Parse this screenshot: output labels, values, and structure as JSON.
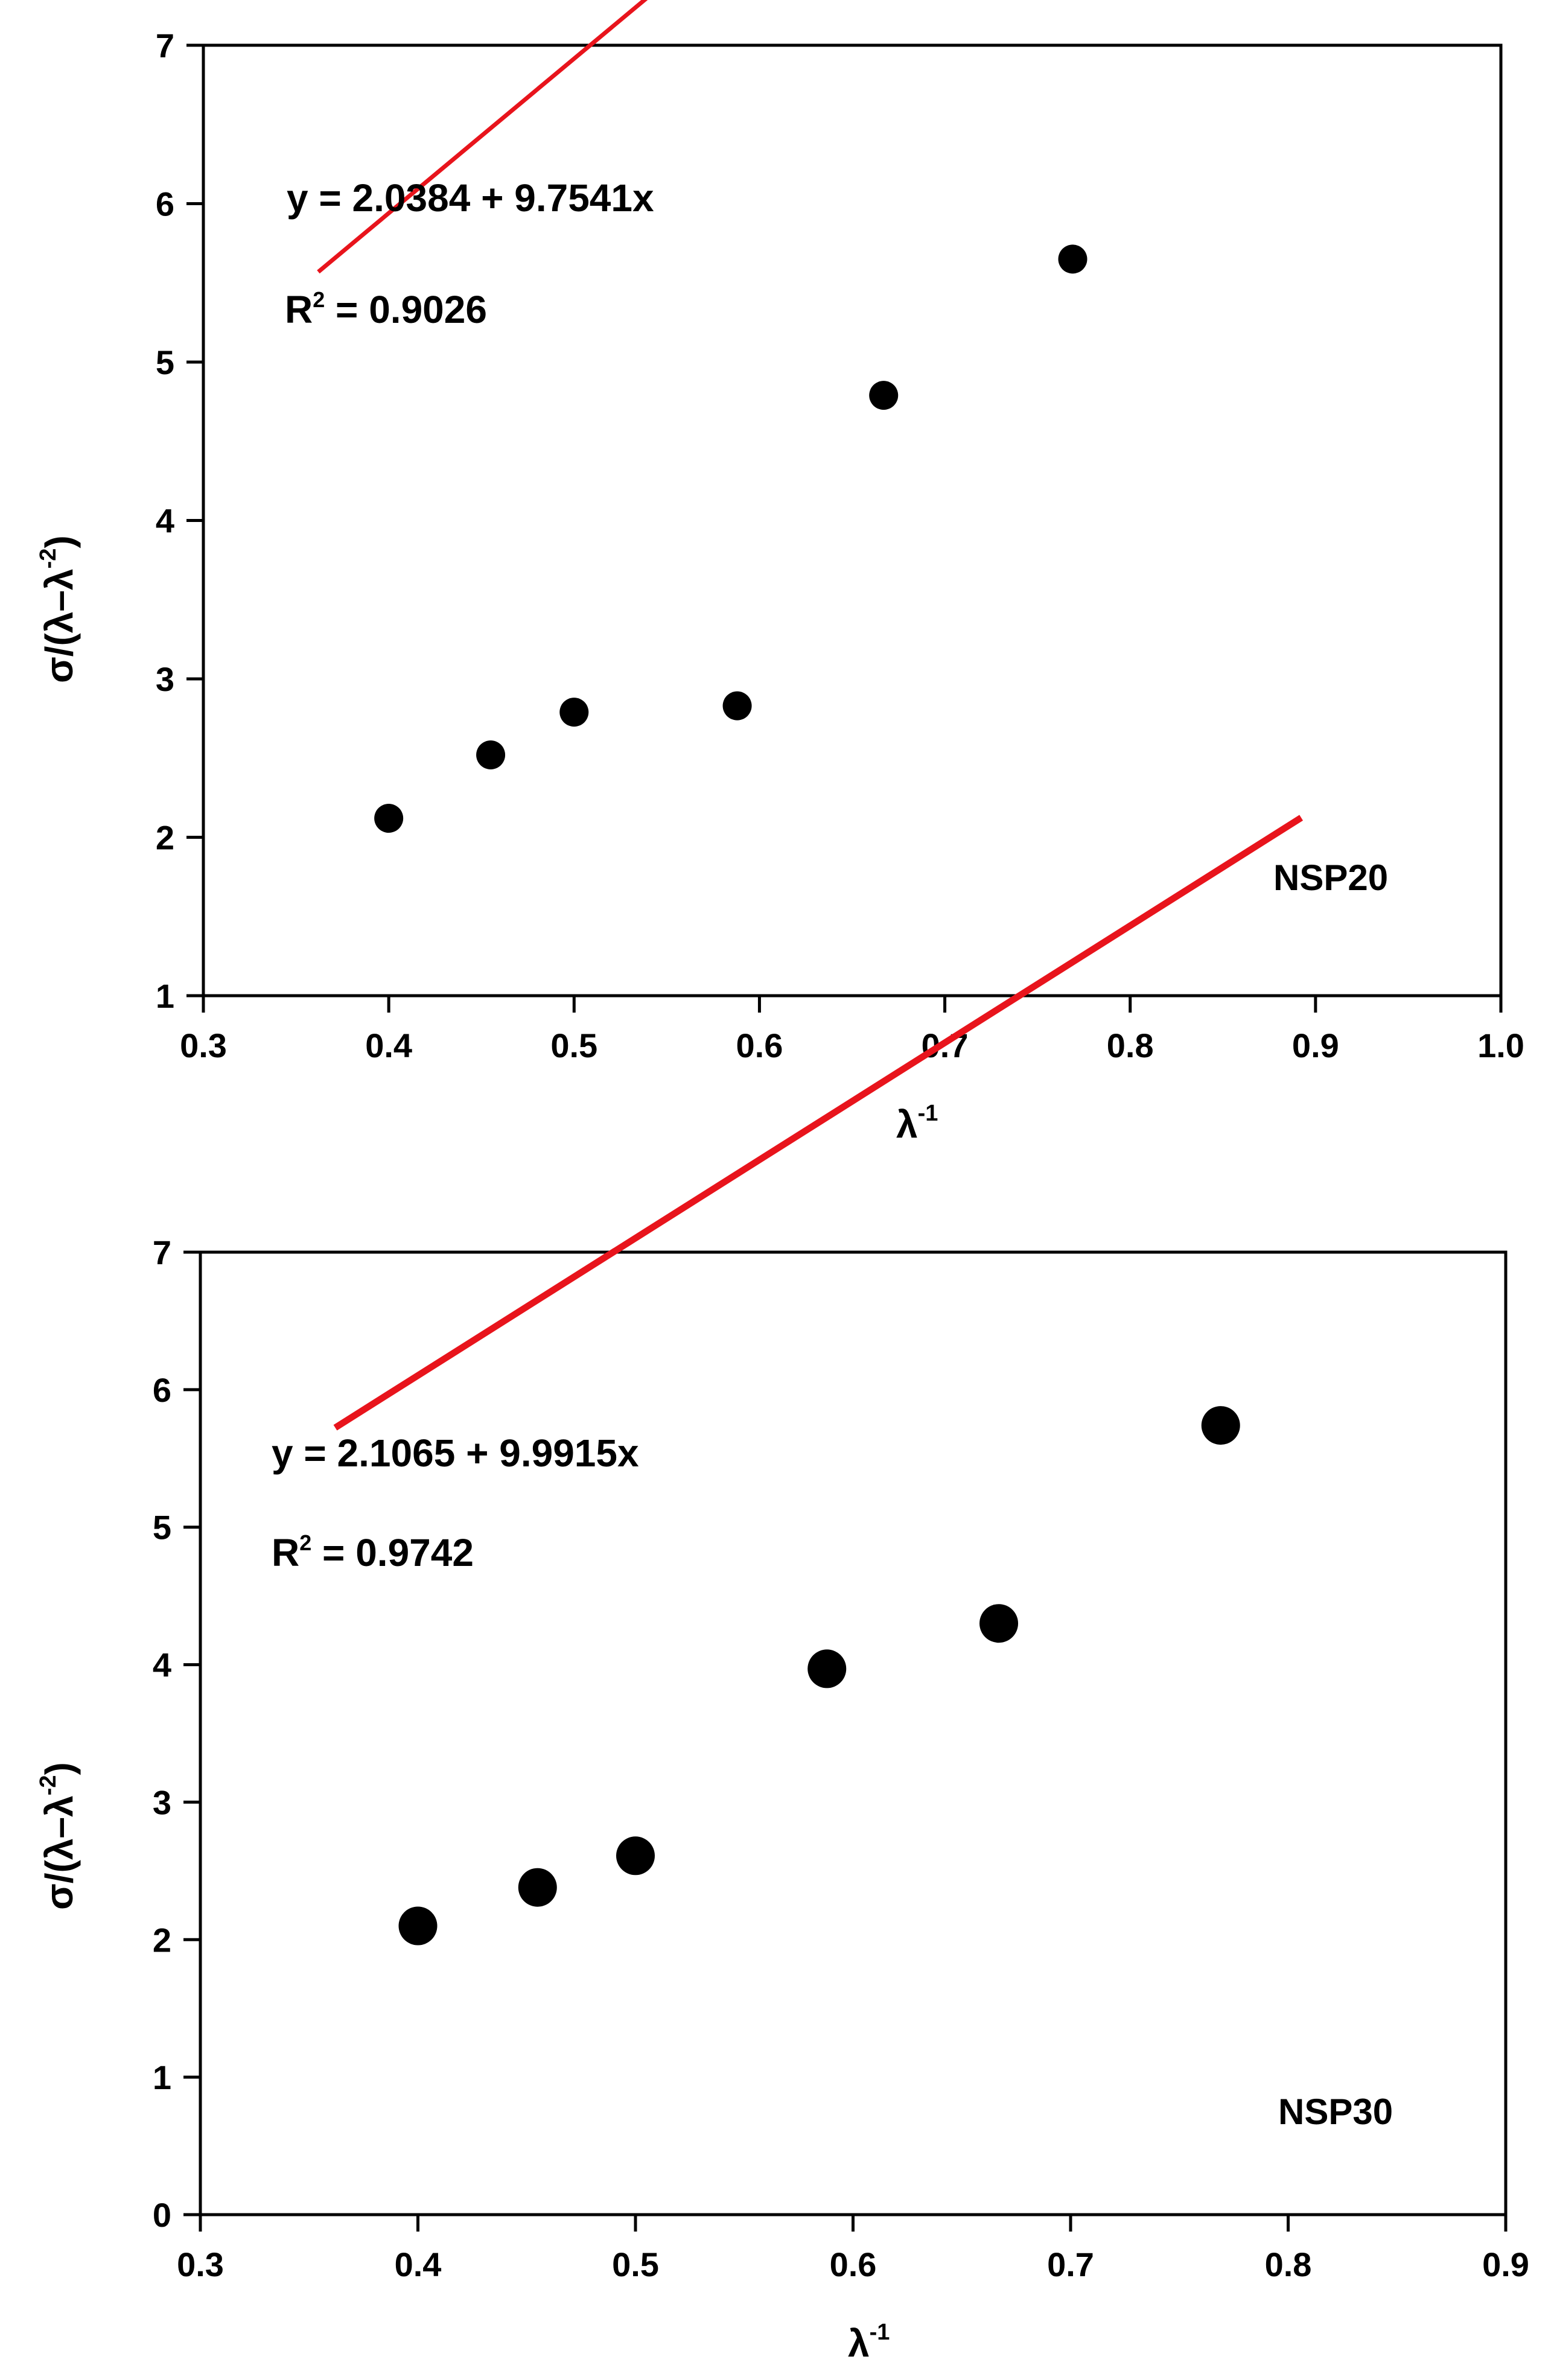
{
  "chart_data": [
    {
      "type": "scatter",
      "sample_label": "NSP20",
      "xlabel": "λ",
      "xlabel_sup": "-1",
      "ylabel": "σ/(λ–λ",
      "ylabel_sup": "-2",
      "ylabel_close": ")",
      "xlim": [
        0.3,
        1.0
      ],
      "ylim": [
        1,
        7
      ],
      "x_ticks": [
        0.3,
        0.4,
        0.5,
        0.6,
        0.7,
        0.8,
        0.9,
        1.0
      ],
      "x_tick_labels": [
        "0.3",
        "0.4",
        "0.5",
        "0.6",
        "0.7",
        "0.8",
        "0.9",
        "1.0"
      ],
      "y_ticks": [
        1,
        2,
        3,
        4,
        5,
        6,
        7
      ],
      "y_tick_labels": [
        "1",
        "2",
        "3",
        "4",
        "5",
        "6",
        "7"
      ],
      "series": [
        {
          "name": "data",
          "x": [
            0.4,
            0.455,
            0.5,
            0.588,
            0.667,
            0.769
          ],
          "y": [
            2.12,
            2.52,
            2.79,
            2.83,
            4.79,
            5.65
          ]
        }
      ],
      "fit": {
        "intercept": 2.0384,
        "slope": 9.7541,
        "x_range": [
          0.362,
          0.806
        ],
        "color": "#e8141c",
        "equation_text": "y = 2.0384 + 9.7541x",
        "r2_prefix": "R",
        "r2_sup": "2",
        "r2_value": " = 0.9026"
      }
    },
    {
      "type": "scatter",
      "sample_label": "NSP30",
      "xlabel": "λ",
      "xlabel_sup": "-1",
      "ylabel": "σ/(λ–λ",
      "ylabel_sup": "-2",
      "ylabel_close": ")",
      "xlim": [
        0.3,
        0.9
      ],
      "ylim": [
        0,
        7
      ],
      "x_ticks": [
        0.3,
        0.4,
        0.5,
        0.6,
        0.7,
        0.8,
        0.9
      ],
      "x_tick_labels": [
        "0.3",
        "0.4",
        "0.5",
        "0.6",
        "0.7",
        "0.8",
        "0.9"
      ],
      "y_ticks": [
        0,
        1,
        2,
        3,
        4,
        5,
        6,
        7
      ],
      "y_tick_labels": [
        "0",
        "1",
        "2",
        "3",
        "4",
        "5",
        "6",
        "7"
      ],
      "series": [
        {
          "name": "data",
          "x": [
            0.4,
            0.455,
            0.5,
            0.588,
            0.667,
            0.769
          ],
          "y": [
            2.1,
            2.38,
            2.61,
            3.97,
            4.3,
            5.74
          ]
        }
      ],
      "fit": {
        "intercept": 2.1065,
        "slope": 9.9915,
        "x_range": [
          0.362,
          0.806
        ],
        "color": "#e8141c",
        "equation_text": "y = 2.1065 + 9.9915x",
        "r2_prefix": "R",
        "r2_sup": "2",
        "r2_value": " = 0.9742"
      }
    }
  ]
}
